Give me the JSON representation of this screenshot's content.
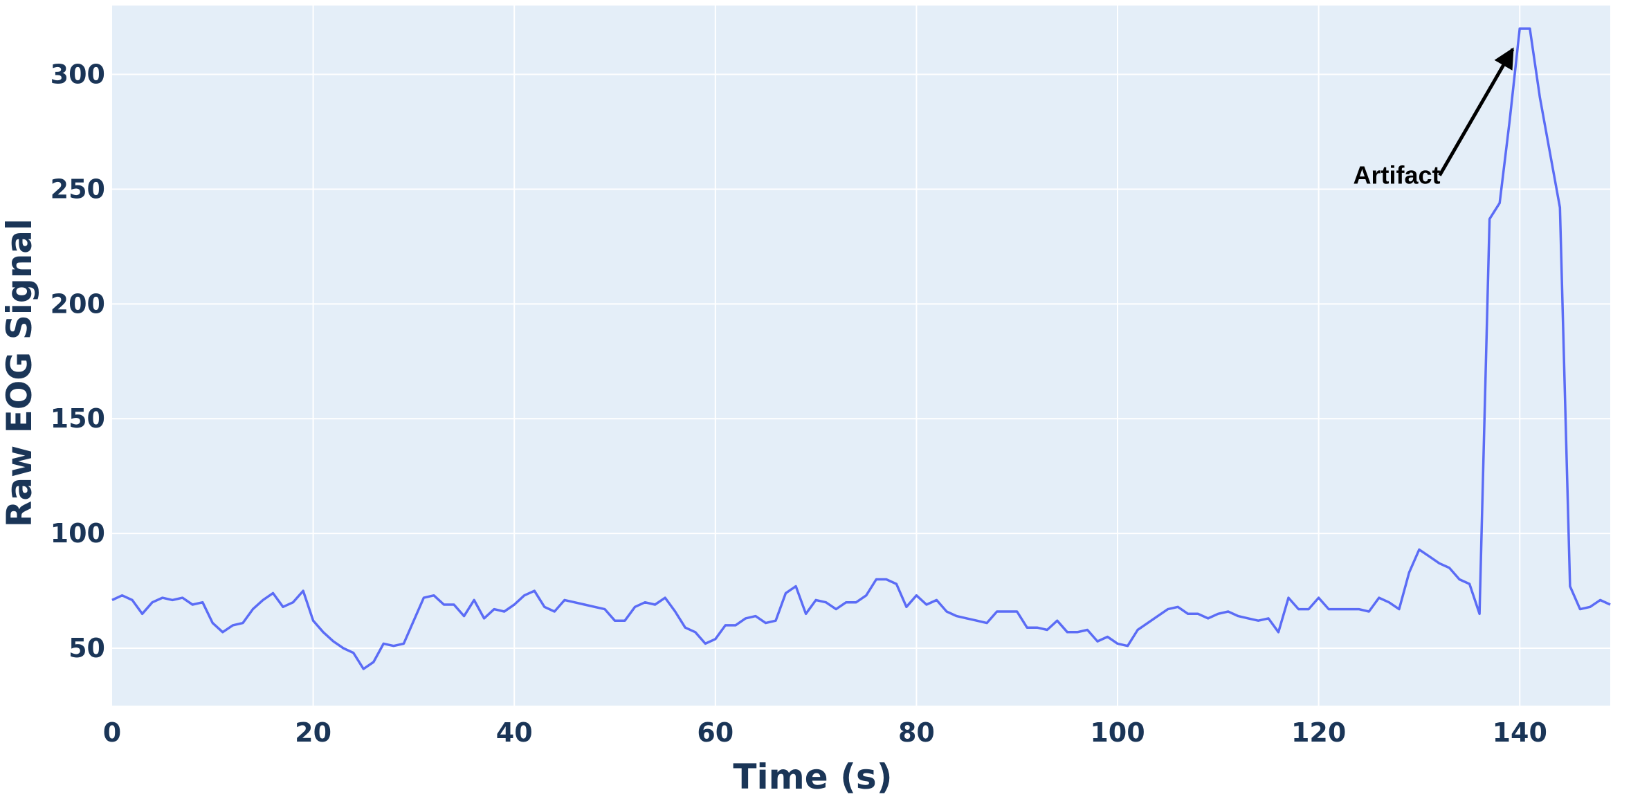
{
  "chart_data": {
    "type": "line",
    "title": "",
    "xlabel": "Time (s)",
    "ylabel": "Raw EOG Signal",
    "xlim": [
      0,
      149
    ],
    "ylim": [
      25,
      330
    ],
    "x_ticks": [
      0,
      20,
      40,
      60,
      80,
      100,
      120,
      140
    ],
    "y_ticks": [
      50,
      100,
      150,
      200,
      250,
      300
    ],
    "grid": true,
    "legend": "none",
    "colors": {
      "plot_bg": "#e4eef8",
      "line": "#5b6cf5",
      "tick_text": "#1a3557",
      "annotation": "#000000"
    },
    "series": [
      {
        "x": [
          0,
          1,
          2,
          3,
          4,
          5,
          6,
          7,
          8,
          9,
          10,
          11,
          12,
          13,
          14,
          15,
          16,
          17,
          18,
          19,
          20,
          21,
          22,
          23,
          24,
          25,
          26,
          27,
          28,
          29,
          30,
          31,
          32,
          33,
          34,
          35,
          36,
          37,
          38,
          39,
          40,
          41,
          42,
          43,
          44,
          45,
          46,
          47,
          48,
          49,
          50,
          51,
          52,
          53,
          54,
          55,
          56,
          57,
          58,
          59,
          60,
          61,
          62,
          63,
          64,
          65,
          66,
          67,
          68,
          69,
          70,
          71,
          72,
          73,
          74,
          75,
          76,
          77,
          78,
          79,
          80,
          81,
          82,
          83,
          84,
          85,
          86,
          87,
          88,
          89,
          90,
          91,
          92,
          93,
          94,
          95,
          96,
          97,
          98,
          99,
          100,
          101,
          102,
          103,
          104,
          105,
          106,
          107,
          108,
          109,
          110,
          111,
          112,
          113,
          114,
          115,
          116,
          117,
          118,
          119,
          120,
          121,
          122,
          123,
          124,
          125,
          126,
          127,
          128,
          129,
          130,
          131,
          132,
          133,
          134,
          135,
          136,
          137,
          138,
          139,
          140,
          141,
          142,
          143,
          144,
          145,
          146,
          147,
          148,
          149
        ],
        "y": [
          71,
          73,
          71,
          65,
          70,
          72,
          71,
          72,
          69,
          70,
          61,
          57,
          60,
          61,
          67,
          71,
          74,
          68,
          70,
          75,
          62,
          57,
          53,
          50,
          48,
          41,
          44,
          52,
          51,
          52,
          62,
          72,
          73,
          69,
          69,
          64,
          71,
          63,
          67,
          66,
          69,
          73,
          75,
          68,
          66,
          71,
          70,
          69,
          68,
          67,
          62,
          62,
          68,
          70,
          69,
          72,
          66,
          59,
          57,
          52,
          54,
          60,
          60,
          63,
          64,
          61,
          62,
          74,
          77,
          65,
          71,
          70,
          67,
          70,
          70,
          73,
          80,
          80,
          78,
          68,
          73,
          69,
          71,
          66,
          64,
          63,
          62,
          61,
          66,
          66,
          66,
          59,
          59,
          58,
          62,
          57,
          57,
          58,
          53,
          55,
          52,
          51,
          58,
          61,
          64,
          67,
          68,
          65,
          65,
          63,
          65,
          66,
          64,
          63,
          62,
          63,
          57,
          72,
          67,
          67,
          72,
          67,
          67,
          67,
          67,
          66,
          72,
          70,
          67,
          83,
          93,
          90,
          87,
          85,
          80,
          78,
          65,
          237,
          244,
          280,
          320,
          320,
          290,
          266,
          242,
          77,
          67,
          68,
          71,
          69
        ]
      }
    ],
    "annotations": [
      {
        "text": "Artifact",
        "x": 131,
        "y": 256,
        "arrow_to_x": 139.3,
        "arrow_to_y": 311
      }
    ]
  }
}
